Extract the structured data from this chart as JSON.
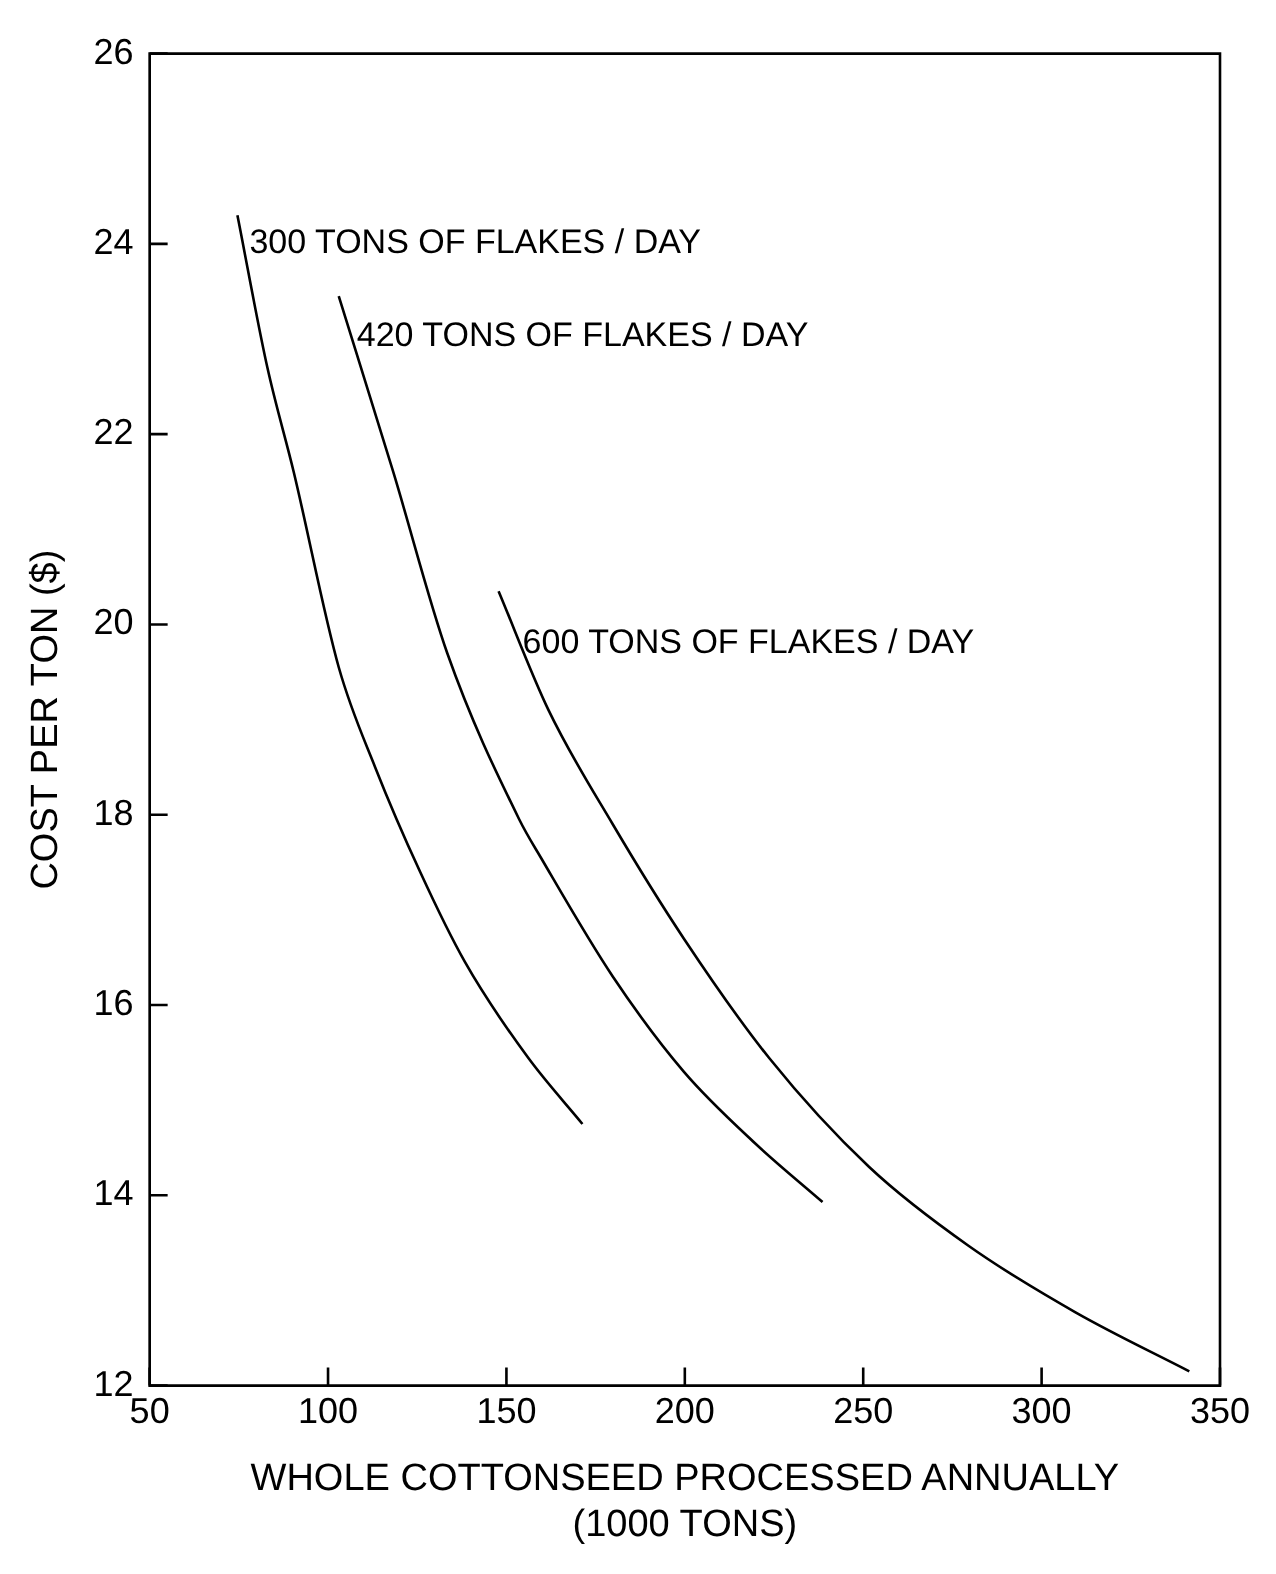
{
  "chart_data": {
    "type": "line",
    "xlabel": "WHOLE COTTONSEED PROCESSED ANNUALLY\n(1000 TONS)",
    "ylabel": "COST PER TON ($)",
    "xlim": [
      50,
      350
    ],
    "xticks": [
      50,
      100,
      150,
      200,
      250,
      300,
      350
    ],
    "ylim": [
      12,
      26
    ],
    "yticks": [
      12,
      14,
      16,
      18,
      20,
      22,
      24,
      26
    ],
    "legend": false,
    "marker": "none",
    "line_style": "solid",
    "series": [
      {
        "name": "300 TONS OF FLAKES / DAY",
        "color": "#000000",
        "x": [
          74.6,
          83,
          90.4,
          103,
          113.2,
          125.8,
          138.4,
          156,
          171.3
        ],
        "values": [
          24.3,
          22.7,
          21.6,
          19.55,
          18.5,
          17.4,
          16.45,
          15.45,
          14.75
        ]
      },
      {
        "name": "420 TONS OF FLAKES / DAY",
        "color": "#000000",
        "x": [
          103,
          118.3,
          133.4,
          153.6,
          159.8,
          179.8,
          199.7,
          219.6,
          238.6
        ],
        "values": [
          23.45,
          21.6,
          19.7,
          17.95,
          17.54,
          16.3,
          15.3,
          14.55,
          13.93
        ]
      },
      {
        "name": "600 TONS OF FLAKES / DAY",
        "color": "#000000",
        "x": [
          147.8,
          161.8,
          179.8,
          199.7,
          223.7,
          251.6,
          279.5,
          309.5,
          341.4
        ],
        "values": [
          20.35,
          19.1,
          17.9,
          16.7,
          15.44,
          14.3,
          13.47,
          12.77,
          12.15
        ]
      }
    ]
  }
}
